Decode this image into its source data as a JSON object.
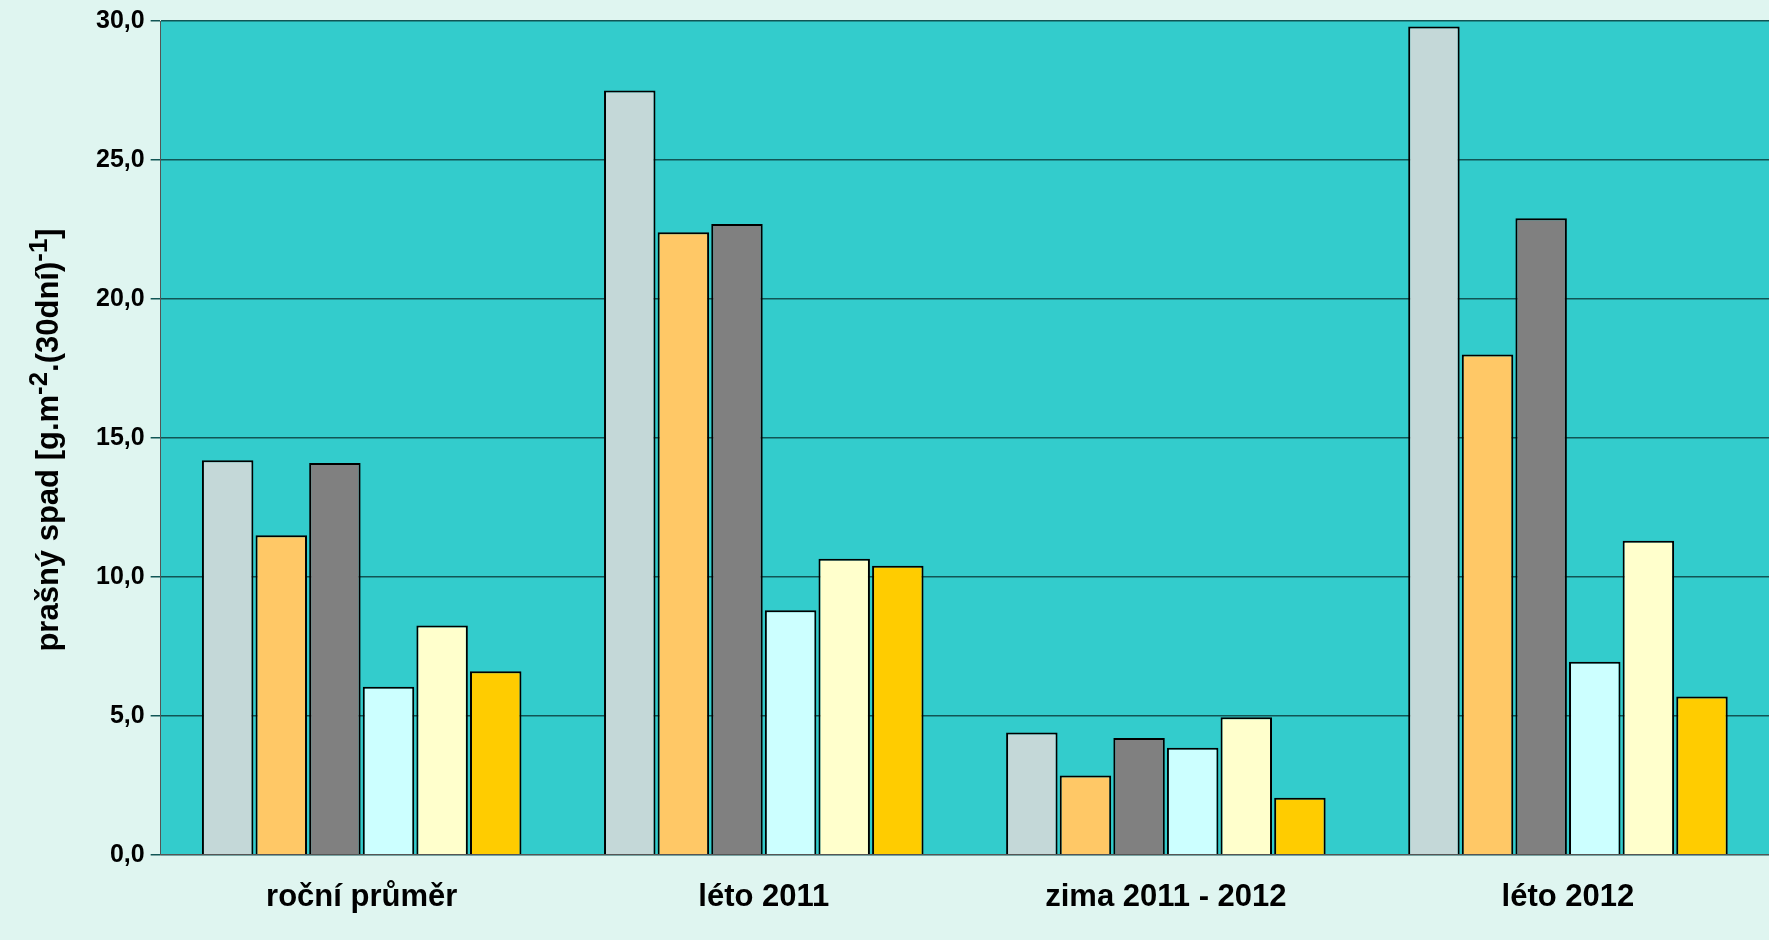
{
  "chart_data": {
    "type": "bar",
    "ylabel": "prašný spad [g.m$^{-2}$.(30dní)$^{-1}$]",
    "categories": [
      "roční průměr",
      "léto 2011",
      "zima 2011 - 2012",
      "léto 2012"
    ],
    "series": [
      {
        "color": "#c4d8d8",
        "values": [
          14.2,
          27.5,
          4.4,
          29.8
        ]
      },
      {
        "color": "#ffc866",
        "values": [
          11.5,
          22.4,
          2.85,
          18.0
        ]
      },
      {
        "color": "#808080",
        "values": [
          14.1,
          22.7,
          4.2,
          22.9
        ]
      },
      {
        "color": "#ccffff",
        "values": [
          6.05,
          8.8,
          3.85,
          6.95
        ]
      },
      {
        "color": "#ffffcc",
        "values": [
          8.25,
          10.65,
          4.95,
          11.3
        ]
      },
      {
        "color": "#ffcc00",
        "values": [
          6.6,
          10.4,
          2.05,
          5.7
        ]
      }
    ],
    "ylim": [
      0,
      30
    ],
    "yticks": [
      {
        "value": 0,
        "label": "0,0"
      },
      {
        "value": 5,
        "label": "5,0"
      },
      {
        "value": 10,
        "label": "10,0"
      },
      {
        "value": 15,
        "label": "15,0"
      },
      {
        "value": 20,
        "label": "20,0"
      },
      {
        "value": 25,
        "label": "25,0"
      },
      {
        "value": 30,
        "label": "30,0"
      }
    ],
    "grid": "y",
    "legend": false
  }
}
